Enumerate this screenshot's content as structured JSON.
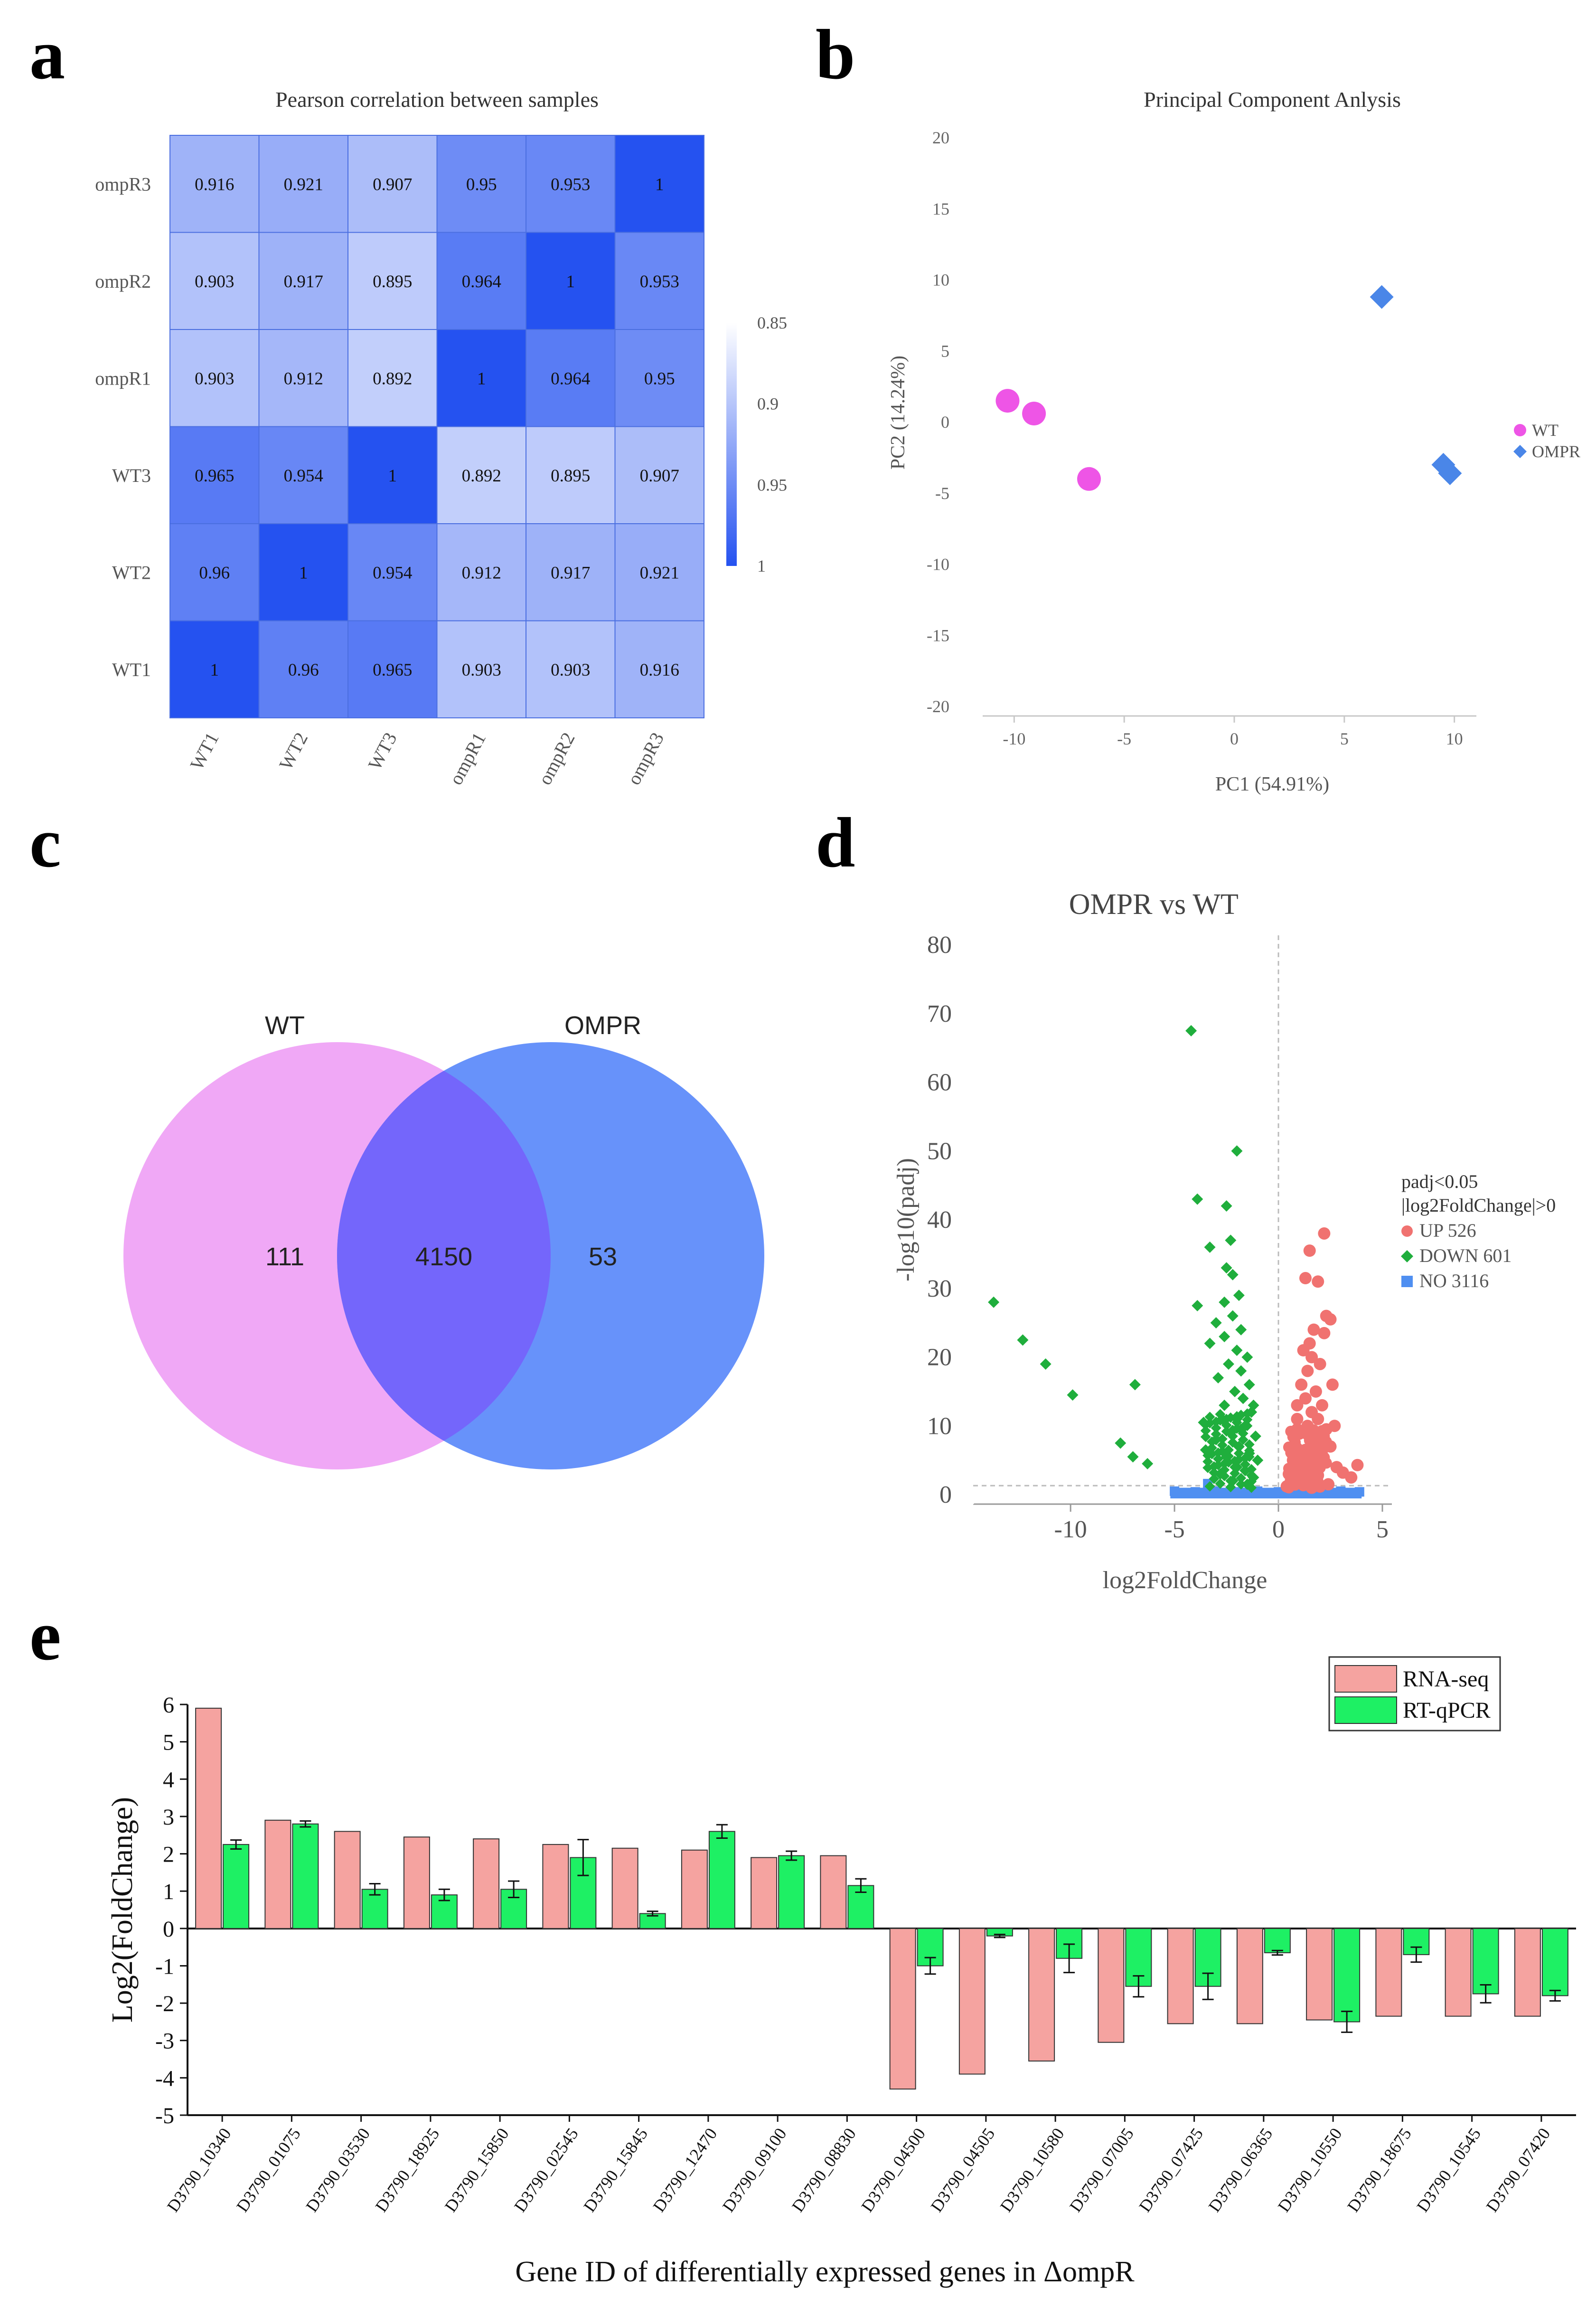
{
  "panels": {
    "a": "a",
    "b": "b",
    "c": "c",
    "d": "d",
    "e": "e"
  },
  "chart_data": [
    {
      "id": "a",
      "type": "heatmap",
      "title": "Pearson correlation between samples",
      "rows": [
        "ompR3",
        "ompR2",
        "ompR1",
        "WT3",
        "WT2",
        "WT1"
      ],
      "cols": [
        "WT1",
        "WT2",
        "WT3",
        "ompR1",
        "ompR2",
        "ompR3"
      ],
      "values": [
        [
          0.916,
          0.921,
          0.907,
          0.95,
          0.953,
          1
        ],
        [
          0.903,
          0.917,
          0.895,
          0.964,
          1,
          0.953
        ],
        [
          0.903,
          0.912,
          0.892,
          1,
          0.964,
          0.95
        ],
        [
          0.965,
          0.954,
          1,
          0.892,
          0.895,
          0.907
        ],
        [
          0.96,
          1,
          0.954,
          0.912,
          0.917,
          0.921
        ],
        [
          1,
          0.96,
          0.965,
          0.903,
          0.903,
          0.916
        ]
      ],
      "colorbar": {
        "ticks": [
          "0.85",
          "0.9",
          "0.95",
          "1"
        ],
        "min": 0.85,
        "max": 1,
        "low_color": "#ffffff",
        "high_color": "#2552f0"
      }
    },
    {
      "id": "b",
      "type": "scatter",
      "title": "Principal Component Anlysis",
      "xlabel": "PC1 (54.91%)",
      "ylabel": "PC2 (14.24%)",
      "xlim": [
        -11,
        11
      ],
      "ylim": [
        -20,
        20
      ],
      "xticks": [
        -10,
        -5,
        0,
        5,
        10
      ],
      "yticks": [
        20,
        15,
        10,
        5,
        0,
        -5,
        -10,
        -15,
        -20
      ],
      "series": [
        {
          "name": "WT",
          "marker": "circle",
          "color": "#ee55e6",
          "points": [
            [
              -10.3,
              1.5
            ],
            [
              -9.1,
              0.6
            ],
            [
              -6.6,
              -4.0
            ]
          ]
        },
        {
          "name": "OMPR",
          "marker": "diamond",
          "color": "#4a86e8",
          "points": [
            [
              6.7,
              8.8
            ],
            [
              9.5,
              -3.0
            ],
            [
              9.8,
              -3.6
            ]
          ]
        }
      ]
    },
    {
      "id": "c",
      "type": "venn",
      "sets": [
        {
          "name": "WT",
          "only": "111",
          "color": "#f0a8f6"
        },
        {
          "name": "OMPR",
          "only": "53",
          "color": "#6792fa"
        }
      ],
      "overlap": "4150",
      "overlap_color": "#7466fb"
    },
    {
      "id": "d",
      "type": "scatter",
      "title": "OMPR vs WT",
      "xlabel": "log2FoldChange",
      "ylabel": "-log10(padj)",
      "xlim": [
        -14,
        5
      ],
      "ylim": [
        0,
        80
      ],
      "xticks": [
        -10,
        -5,
        0,
        5
      ],
      "yticks": [
        80,
        70,
        60,
        50,
        40,
        30,
        20,
        10,
        0
      ],
      "legend_title": [
        "padj<0.05",
        "|log2FoldChange|>0"
      ],
      "series": [
        {
          "name": "UP 526",
          "color": "#f07270",
          "marker": "circle",
          "points": [
            [
              2.2,
              38
            ],
            [
              1.5,
              35.5
            ],
            [
              1.3,
              31.5
            ],
            [
              1.9,
              31
            ],
            [
              2.3,
              26
            ],
            [
              2.5,
              25.5
            ],
            [
              1.7,
              24
            ],
            [
              2.2,
              23.5
            ],
            [
              1.5,
              22
            ],
            [
              1.2,
              21
            ],
            [
              1.6,
              20
            ],
            [
              2.0,
              19
            ],
            [
              1.4,
              18
            ],
            [
              2.6,
              16
            ],
            [
              1.8,
              15
            ],
            [
              1.3,
              14
            ],
            [
              2.1,
              13
            ],
            [
              1.6,
              12
            ],
            [
              0.9,
              11
            ],
            [
              1.4,
              10
            ],
            [
              2.3,
              9.5
            ],
            [
              1.1,
              9
            ],
            [
              1.7,
              8
            ],
            [
              0.8,
              7
            ],
            [
              1.3,
              6.5
            ],
            [
              2.0,
              6
            ],
            [
              0.7,
              5
            ],
            [
              1.5,
              4.5
            ],
            [
              2.8,
              4
            ],
            [
              1.0,
              3.5
            ],
            [
              3.1,
              3.2
            ],
            [
              0.5,
              3
            ],
            [
              1.9,
              2.8
            ],
            [
              3.5,
              2.5
            ],
            [
              0.6,
              2
            ],
            [
              1.2,
              1.8
            ],
            [
              2.4,
              1.5
            ],
            [
              0.4,
              1.2
            ],
            [
              1.6,
              1
            ],
            [
              3.8,
              4.3
            ],
            [
              1.1,
              16
            ],
            [
              1.9,
              11
            ],
            [
              2.5,
              7
            ],
            [
              0.9,
              13
            ],
            [
              2.7,
              10
            ]
          ]
        },
        {
          "name": "DOWN 601",
          "color": "#1fae3c",
          "marker": "diamond",
          "points": [
            [
              -4.2,
              67.5
            ],
            [
              -2.0,
              50
            ],
            [
              -3.9,
              43
            ],
            [
              -2.5,
              42
            ],
            [
              -2.3,
              37
            ],
            [
              -3.3,
              36
            ],
            [
              -2.5,
              33
            ],
            [
              -2.2,
              32
            ],
            [
              -1.9,
              29
            ],
            [
              -2.6,
              28
            ],
            [
              -3.9,
              27.5
            ],
            [
              -2.2,
              26
            ],
            [
              -3.0,
              25
            ],
            [
              -1.8,
              24
            ],
            [
              -2.6,
              23
            ],
            [
              -3.3,
              22
            ],
            [
              -2.0,
              21
            ],
            [
              -1.5,
              20
            ],
            [
              -2.4,
              19
            ],
            [
              -1.8,
              18
            ],
            [
              -2.9,
              17
            ],
            [
              -1.4,
              16
            ],
            [
              -2.1,
              15
            ],
            [
              -1.7,
              14
            ],
            [
              -2.6,
              13
            ],
            [
              -1.3,
              12
            ],
            [
              -2.0,
              11
            ],
            [
              -3.6,
              10.5
            ],
            [
              -1.6,
              10
            ],
            [
              -2.3,
              9
            ],
            [
              -1.1,
              8.5
            ],
            [
              -3.0,
              8
            ],
            [
              -1.9,
              7
            ],
            [
              -1.4,
              6
            ],
            [
              -2.5,
              5.5
            ],
            [
              -1.0,
              5
            ],
            [
              -2.0,
              4
            ],
            [
              -1.6,
              3.5
            ],
            [
              -2.8,
              3
            ],
            [
              -1.2,
              2.5
            ],
            [
              -2.2,
              2
            ],
            [
              -1.5,
              1.5
            ],
            [
              -13.7,
              28
            ],
            [
              -12.3,
              22.5
            ],
            [
              -11.2,
              19
            ],
            [
              -9.9,
              14.5
            ],
            [
              -6.9,
              16
            ],
            [
              -7.6,
              7.5
            ],
            [
              -7.0,
              5.5
            ],
            [
              -6.3,
              4.5
            ],
            [
              -2.7,
              11
            ],
            [
              -1.8,
              9.5
            ],
            [
              -3.5,
              6.5
            ],
            [
              -1.2,
              13
            ]
          ]
        },
        {
          "name": "NO 3116",
          "color": "#4f8ff1",
          "marker": "square",
          "points": [
            [
              -5.0,
              0.5
            ],
            [
              -4.0,
              0.4
            ],
            [
              -3.0,
              0.5
            ],
            [
              -2.0,
              0.4
            ],
            [
              -1.0,
              0.5
            ],
            [
              0.0,
              0.4
            ],
            [
              1.0,
              0.5
            ],
            [
              2.0,
              0.4
            ],
            [
              3.0,
              0.5
            ],
            [
              3.9,
              0.4
            ],
            [
              -3.4,
              1.6
            ]
          ]
        }
      ]
    },
    {
      "id": "e",
      "type": "bar",
      "ylabel": "Log2(FoldChange)",
      "xlabel": "Gene ID of differentially expressed genes in ΔompR",
      "ylim": [
        -5,
        6
      ],
      "yticks": [
        6,
        5,
        4,
        3,
        2,
        1,
        0,
        -1,
        -2,
        -3,
        -4,
        -5
      ],
      "categories": [
        "D3790_10340",
        "D3790_01075",
        "D3790_03530",
        "D3790_18925",
        "D3790_15850",
        "D3790_02545",
        "D3790_15845",
        "D3790_12470",
        "D3790_09100",
        "D3790_08830",
        "D3790_04500",
        "D3790_04505",
        "D3790_10580",
        "D3790_07005",
        "D3790_07425",
        "D3790_06365",
        "D3790_10550",
        "D3790_18675",
        "D3790_10545",
        "D3790_07420"
      ],
      "series": [
        {
          "name": "RNA-seq",
          "color": "#f5a3a0",
          "values": [
            5.9,
            2.9,
            2.6,
            2.45,
            2.4,
            2.25,
            2.15,
            2.1,
            1.9,
            1.95,
            -4.3,
            -3.9,
            -3.55,
            -3.05,
            -2.55,
            -2.55,
            -2.45,
            -2.35,
            -2.35,
            -2.35
          ]
        },
        {
          "name": "RT-qPCR",
          "color": "#1ef064",
          "values": [
            2.25,
            2.8,
            1.05,
            0.9,
            1.05,
            1.9,
            0.4,
            2.6,
            1.95,
            1.15,
            -1.0,
            -0.2,
            -0.8,
            -1.55,
            -1.55,
            -0.65,
            -2.5,
            -0.7,
            -1.75,
            -1.8
          ],
          "errors": [
            0.12,
            0.08,
            0.15,
            0.15,
            0.22,
            0.48,
            0.06,
            0.18,
            0.12,
            0.18,
            0.22,
            0.04,
            0.38,
            0.28,
            0.35,
            0.06,
            0.28,
            0.2,
            0.24,
            0.14
          ]
        }
      ]
    }
  ]
}
